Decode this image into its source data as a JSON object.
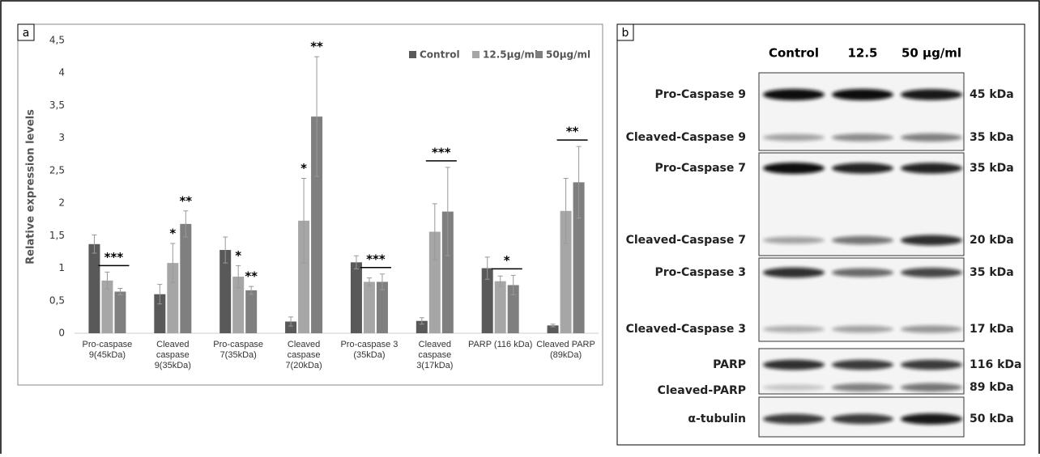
{
  "chart_data": {
    "type": "bar",
    "panel": "a",
    "ylabel": "Relative expression levels",
    "categories": [
      "Pro-caspase 9(45kDa)",
      "Cleaved caspase 9(35kDa)",
      "Pro-caspase 7(35kDa)",
      "Cleaved caspase 7(20kDa)",
      "Pro-caspase 3 (35kDa)",
      "Cleaved caspase 3(17kDa)",
      "PARP (116 kDa)",
      "Cleaved PARP (89kDa)"
    ],
    "series": [
      {
        "name": "Control",
        "color": "#595959",
        "values": [
          1.37,
          0.6,
          1.28,
          0.18,
          1.09,
          0.19,
          1.0,
          0.12
        ],
        "errors": [
          0.14,
          0.15,
          0.2,
          0.07,
          0.1,
          0.05,
          0.17,
          0.02
        ]
      },
      {
        "name": "12.5µg/ml",
        "color": "#a6a6a6",
        "values": [
          0.81,
          1.08,
          0.87,
          1.73,
          0.79,
          1.56,
          0.8,
          1.88
        ],
        "errors": [
          0.13,
          0.3,
          0.17,
          0.65,
          0.06,
          0.43,
          0.08,
          0.5
        ]
      },
      {
        "name": "50µg/ml",
        "color": "#7f7f7f",
        "values": [
          0.64,
          1.68,
          0.66,
          3.33,
          0.79,
          1.87,
          0.74,
          2.32
        ],
        "errors": [
          0.05,
          0.2,
          0.06,
          0.92,
          0.12,
          0.68,
          0.15,
          0.55
        ]
      }
    ],
    "ylim": [
      0,
      4.5
    ],
    "yticks": [
      0,
      {
        "value": 0.5,
        "label": "0,5"
      },
      1,
      {
        "value": 1.5,
        "label": "1,5"
      },
      2,
      {
        "value": 2.5,
        "label": "2,5"
      },
      3,
      {
        "value": 3.5,
        "label": "3,5"
      },
      4,
      {
        "value": 4.5,
        "label": "4,5"
      }
    ],
    "grid": false,
    "legend": "top-right",
    "annotations": [
      {
        "text": "***",
        "category": 0,
        "span": [
          1,
          2
        ]
      },
      {
        "text": "*",
        "category": 1,
        "series": 1
      },
      {
        "text": "**",
        "category": 1,
        "series": 2
      },
      {
        "text": "*",
        "category": 2,
        "series": 1
      },
      {
        "text": "**",
        "category": 2,
        "series": 2
      },
      {
        "text": "*",
        "category": 3,
        "series": 1
      },
      {
        "text": "**",
        "category": 3,
        "series": 2
      },
      {
        "text": "***",
        "category": 4,
        "span": [
          1,
          2
        ]
      },
      {
        "text": "***",
        "category": 5,
        "span": [
          1,
          2
        ]
      },
      {
        "text": "*",
        "category": 6,
        "span": [
          1,
          2
        ]
      },
      {
        "text": "**",
        "category": 7,
        "span": [
          1,
          2
        ]
      }
    ]
  },
  "blot": {
    "panel": "b",
    "lanes": [
      "Control",
      "12.5",
      "50 µg/ml"
    ],
    "groups": [
      {
        "rows": [
          {
            "label": "Pro-Caspase 9",
            "size": "45 kDa"
          },
          {
            "label": "Cleaved-Caspase 9",
            "size": "35 kDa"
          }
        ]
      },
      {
        "rows": [
          {
            "label": "Pro-Caspase 7",
            "size": "35 kDa"
          },
          {
            "label": "Cleaved-Caspase 7",
            "size": "20 kDa"
          }
        ]
      },
      {
        "rows": [
          {
            "label": "Pro-Caspase 3",
            "size": "35 kDa"
          },
          {
            "label": "Cleaved-Caspase 3",
            "size": "17 kDa"
          }
        ]
      },
      {
        "rows": [
          {
            "label": "PARP",
            "size": "116 kDa"
          },
          {
            "label": "Cleaved-PARP",
            "size": "89 kDa"
          }
        ]
      },
      {
        "rows": [
          {
            "label": "α-tubulin",
            "size": "50 kDa"
          }
        ]
      }
    ]
  }
}
